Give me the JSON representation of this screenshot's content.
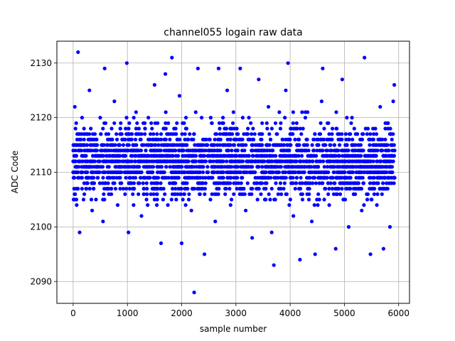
{
  "chart_data": {
    "type": "scatter",
    "title": "channel055 logain raw data",
    "xlabel": "sample number",
    "ylabel": "ADC Code",
    "xlim": [
      -300,
      6200
    ],
    "ylim": [
      2086,
      2134
    ],
    "x_ticks": [
      0,
      1000,
      2000,
      3000,
      4000,
      5000,
      6000
    ],
    "y_ticks": [
      2090,
      2100,
      2110,
      2120,
      2130
    ],
    "grid": true,
    "marker_color": "#0000ff",
    "series": [
      {
        "x": [
          0,
          30,
          60,
          90,
          120,
          160,
          200,
          250,
          300,
          350,
          400,
          450,
          500,
          550,
          580,
          620,
          660,
          700,
          760,
          820,
          880,
          950,
          990,
          1020,
          1060,
          1100,
          1160,
          1200,
          1260,
          1320,
          1380,
          1440,
          1500,
          1560,
          1620,
          1680,
          1700,
          1760,
          1820,
          1860,
          1880,
          1900,
          1960,
          2000,
          2060,
          2120,
          2180,
          2230,
          2260,
          2300,
          2360,
          2420,
          2500,
          2560,
          2620,
          2680,
          2700,
          2780,
          2840,
          2900,
          2960,
          3020,
          3080,
          3110,
          3180,
          3240,
          3300,
          3360,
          3420,
          3480,
          3540,
          3600,
          3660,
          3700,
          3760,
          3820,
          3880,
          3920,
          3960,
          4000,
          4060,
          4120,
          4180,
          4220,
          4280,
          4340,
          4400,
          4460,
          4520,
          4580,
          4600,
          4660,
          4720,
          4780,
          4840,
          4900,
          4960,
          5020,
          5080,
          5140,
          5200,
          5260,
          5320,
          5370,
          5420,
          5480,
          5540,
          5600,
          5660,
          5720,
          5780,
          5840,
          5900,
          5920
        ],
        "y": [
          2110,
          2122,
          2105,
          2132,
          2099,
          2113,
          2118,
          2108,
          2125,
          2103,
          2115,
          2109,
          2120,
          2101,
          2129,
          2107,
          2116,
          2112,
          2123,
          2104,
          2117,
          2111,
          2130,
          2099,
          2114,
          2106,
          2121,
          2108,
          2102,
          2119,
          2113,
          2110,
          2126,
          2107,
          2097,
          2115,
          2128,
          2109,
          2131,
          2118,
          2112,
          2105,
          2124,
          2097,
          2110,
          2116,
          2103,
          2088,
          2121,
          2129,
          2107,
          2095,
          2114,
          2119,
          2101,
          2129,
          2111,
          2108,
          2125,
          2117,
          2106,
          2110,
          2129,
          2113,
          2103,
          2120,
          2098,
          2115,
          2127,
          2109,
          2105,
          2122,
          2099,
          2093,
          2111,
          2118,
          2107,
          2125,
          2130,
          2112,
          2102,
          2119,
          2094,
          2121,
          2108,
          2114,
          2101,
          2095,
          2116,
          2123,
          2129,
          2110,
          2104,
          2118,
          2096,
          2113,
          2127,
          2109,
          2100,
          2120,
          2106,
          2115,
          2103,
          2131,
          2112,
          2095,
          2117,
          2108,
          2122,
          2096,
          2114,
          2100,
          2123,
          2126
        ]
      }
    ]
  }
}
